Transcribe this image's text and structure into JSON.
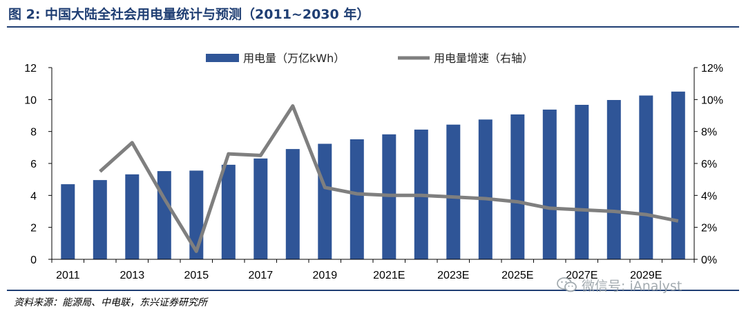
{
  "header": {
    "title": "图 2: 中国大陆全社会用电量统计与预测（2011~2030 年）"
  },
  "footer": {
    "source": "资料来源：能源局、中电联，东兴证券研究所",
    "watermark": "微信号: iAnalyst",
    "watermark_icon": "wechat-icon"
  },
  "colors": {
    "bar": "#2f5597",
    "line": "#7f7f7f",
    "title": "#1f3e73"
  },
  "chart_data": {
    "type": "bar",
    "categories": [
      "2011",
      "2012",
      "2013",
      "2014",
      "2015",
      "2016",
      "2017",
      "2018",
      "2019",
      "2020",
      "2021E",
      "2022E",
      "2023E",
      "2024E",
      "2025E",
      "2026E",
      "2027E",
      "2028E",
      "2029E",
      "2030E"
    ],
    "x_tick_labels": [
      "2011",
      "2013",
      "2015",
      "2017",
      "2019",
      "2021E",
      "2023E",
      "2025E",
      "2027E",
      "2029E"
    ],
    "series": [
      {
        "name": "用电量（万亿kWh）",
        "type": "bar",
        "axis": "left",
        "values": [
          4.7,
          4.96,
          5.32,
          5.52,
          5.55,
          5.92,
          6.31,
          6.9,
          7.23,
          7.51,
          7.82,
          8.12,
          8.43,
          8.75,
          9.07,
          9.37,
          9.67,
          9.97,
          10.25,
          10.5
        ]
      },
      {
        "name": "用电量增速（右轴）",
        "type": "line",
        "axis": "right",
        "values": [
          null,
          5.5,
          7.3,
          3.8,
          0.5,
          6.6,
          6.5,
          9.6,
          4.5,
          4.1,
          4.0,
          4.0,
          3.9,
          3.8,
          3.6,
          3.2,
          3.1,
          3.0,
          2.8,
          2.4
        ]
      }
    ],
    "y_left": {
      "ylim": [
        0,
        12
      ],
      "ticks": [
        "0",
        "2",
        "4",
        "6",
        "8",
        "10",
        "12"
      ]
    },
    "y_right": {
      "ylim": [
        0,
        12
      ],
      "ticks": [
        "0%",
        "2%",
        "4%",
        "6%",
        "8%",
        "10%",
        "12%"
      ]
    },
    "grid": false,
    "legend_position": "top-center"
  }
}
